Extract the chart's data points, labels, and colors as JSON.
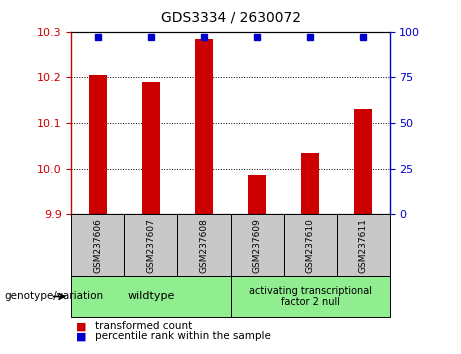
{
  "title": "GDS3334 / 2630072",
  "samples": [
    "GSM237606",
    "GSM237607",
    "GSM237608",
    "GSM237609",
    "GSM237610",
    "GSM237611"
  ],
  "transformed_counts": [
    10.205,
    10.19,
    10.285,
    9.985,
    10.035,
    10.13
  ],
  "percentile_ranks": [
    97,
    97,
    97,
    97,
    97,
    97
  ],
  "ylim_left": [
    9.9,
    10.3
  ],
  "ylim_right": [
    0,
    100
  ],
  "yticks_left": [
    9.9,
    10.0,
    10.1,
    10.2,
    10.3
  ],
  "yticks_right": [
    0,
    25,
    50,
    75,
    100
  ],
  "left_color": "#cc0000",
  "right_color": "#0000cc",
  "bar_color": "#cc0000",
  "dot_color": "#0000cc",
  "group_label_prefix": "genotype/variation",
  "group_wildtype_label": "wildtype",
  "group_atf2_label": "activating transcriptional\nfactor 2 null",
  "legend_items": [
    {
      "color": "#cc0000",
      "label": "transformed count"
    },
    {
      "color": "#0000cc",
      "label": "percentile rank within the sample"
    }
  ],
  "bg_color": "#c8c8c8",
  "green_color": "#90ee90",
  "plot_bg": "#ffffff",
  "x_positions": [
    0,
    1,
    2,
    3,
    4,
    5
  ]
}
